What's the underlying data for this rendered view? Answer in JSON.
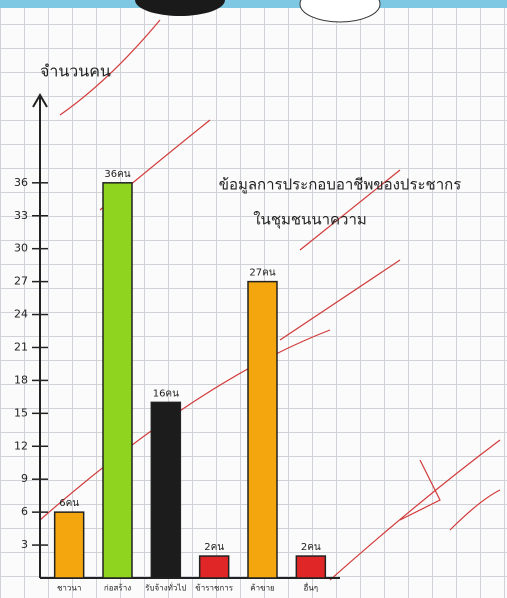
{
  "chart_data": {
    "type": "bar",
    "title": [
      "ข้อมูลการประกอบอาชีพของประชากร",
      "ในชุมชนนาความ"
    ],
    "y_label": "จำนวนคน",
    "categories": [
      "ชาวนา",
      "ก่อสร้าง",
      "รับจ้างทั่วไป",
      "ข้าราชการ",
      "ค้าขาย",
      "อื่นๆ"
    ],
    "values": [
      6,
      36,
      16,
      2,
      27,
      2
    ],
    "value_labels": [
      "6คน",
      "36คน",
      "16คน",
      "2คน",
      "27คน",
      "2คน"
    ],
    "colors": [
      "#f3a60d",
      "#8fd41e",
      "#1c1c1c",
      "#e02626",
      "#f3a60d",
      "#e02626"
    ],
    "ylim": [
      0,
      44
    ],
    "yticks": [
      3,
      6,
      9,
      12,
      15,
      18,
      21,
      24,
      27,
      30,
      33,
      36
    ],
    "grid": true
  }
}
